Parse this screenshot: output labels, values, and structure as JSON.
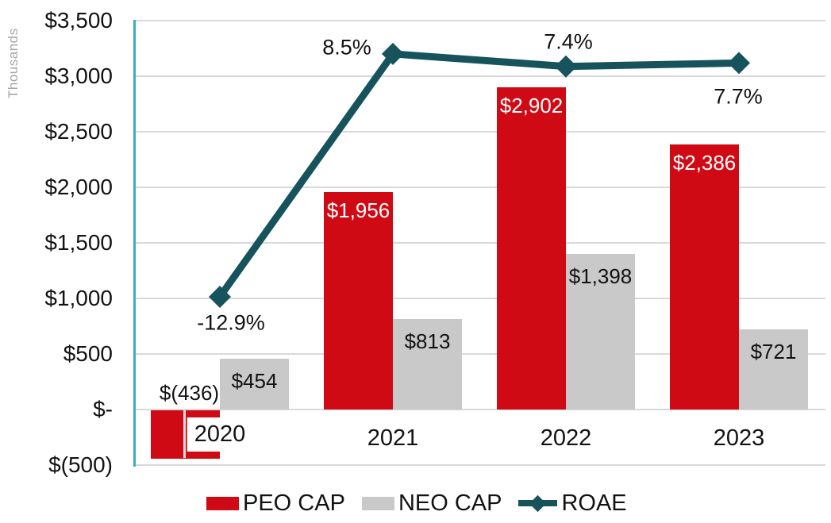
{
  "chart_data": {
    "type": "combo-bar-line",
    "categories": [
      "2020",
      "2021",
      "2022",
      "2023"
    ],
    "series": [
      {
        "name": "PEO CAP",
        "type": "bar",
        "color": "#d00a14",
        "values": [
          -436,
          1956,
          2902,
          2386
        ],
        "data_labels": [
          "$(436)",
          "$1,956",
          "$2,902",
          "$2,386"
        ]
      },
      {
        "name": "NEO CAP",
        "type": "bar",
        "color": "#c9c9c9",
        "values": [
          454,
          813,
          1398,
          721
        ],
        "data_labels": [
          "$454",
          "$813",
          "$1,398",
          "$721"
        ]
      },
      {
        "name": "ROAE",
        "type": "line",
        "color": "#16535c",
        "unit": "%",
        "values": [
          -12.9,
          8.5,
          7.4,
          7.7
        ],
        "data_labels": [
          "-12.9%",
          "8.5%",
          "7.4%",
          "7.7%"
        ]
      }
    ],
    "y_axis": {
      "title": "Thousands",
      "tick_labels": [
        "$3,500",
        "$3,000",
        "$2,500",
        "$2,000",
        "$1,500",
        "$1,000",
        "$500",
        "$-",
        "$(500)"
      ],
      "min": -500,
      "max": 3500,
      "step": 500
    },
    "grid": true,
    "legend_position": "bottom",
    "colors": {
      "bar_red": "#d00a14",
      "bar_gray": "#c9c9c9",
      "line_teal": "#16535c",
      "axis_line_teal": "#3bafb8",
      "gridline": "#d9d9d9",
      "text": "#121212",
      "muted_text": "#a6a6a6"
    }
  }
}
